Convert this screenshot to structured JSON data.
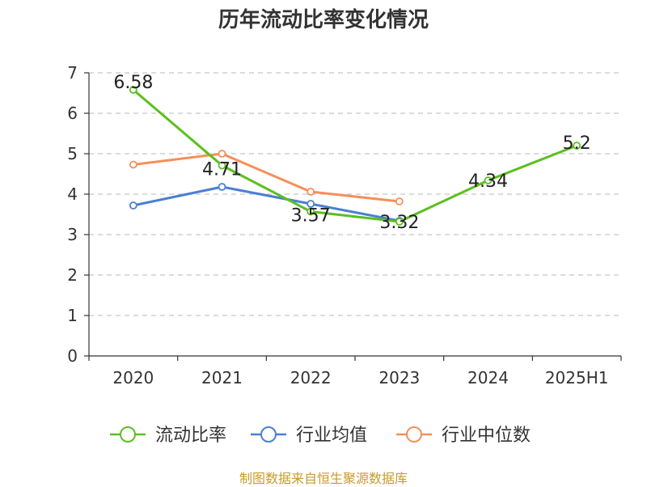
{
  "chart_data": {
    "type": "line",
    "title": "历年流动比率变化情况",
    "categories": [
      "2020",
      "2021",
      "2022",
      "2023",
      "2024",
      "2025H1"
    ],
    "yticks": [
      "0",
      "1",
      "2",
      "3",
      "4",
      "5",
      "6",
      "7"
    ],
    "ylim": [
      0,
      7
    ],
    "grid": true,
    "legend_position": "bottom",
    "series": [
      {
        "name": "流动比率",
        "color": "#5cbf1f",
        "values": [
          6.58,
          4.71,
          3.57,
          3.32,
          4.34,
          5.2
        ],
        "labels": [
          "6.58",
          "4.71",
          "3.57",
          "3.32",
          "4.34",
          "5.2"
        ]
      },
      {
        "name": "行业均值",
        "color": "#4a7fd4",
        "values": [
          3.72,
          4.18,
          3.76,
          3.34,
          null,
          null
        ]
      },
      {
        "name": "行业中位数",
        "color": "#f58f5a",
        "values": [
          4.73,
          5.0,
          4.06,
          3.82,
          null,
          null
        ]
      }
    ]
  },
  "footer": {
    "source": "制图数据来自恒生聚源数据库",
    "source_color": "#c89b2a"
  }
}
